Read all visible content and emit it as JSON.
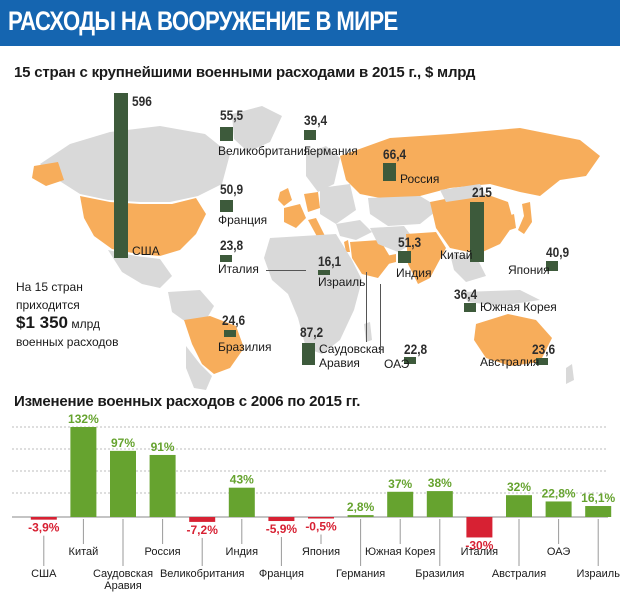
{
  "header": {
    "title": "РАСХОДЫ НА ВООРУЖЕНИЕ В МИРЕ"
  },
  "map_section": {
    "title": "15 стран с крупнейшими военными расходами в 2015 г., $ млрд"
  },
  "bar_section": {
    "title": "Изменение военных расходов с 2006 по 2015 гг."
  },
  "summary": {
    "line1": "На 15 стран",
    "line2": "приходится",
    "total": "$1 350",
    "total_unit": "млрд",
    "line4": "военных расходов"
  },
  "colors": {
    "header": "#1565b0",
    "map_highlight": "#f7ad5b",
    "map_other": "#d9d9d9",
    "spend_bar": "#3d5a3b",
    "increase": "#66a32f",
    "decrease": "#d72133"
  },
  "chart_data": [
    {
      "type": "bar",
      "title": "15 стран с крупнейшими военными расходами в 2015 г., $ млрд",
      "unit": "$ млрд",
      "categories": [
        "США",
        "Китай",
        "Саудовская Аравия",
        "Россия",
        "Великобритания",
        "Индия",
        "Франция",
        "Япония",
        "Германия",
        "Южная Корея",
        "Бразилия",
        "Италия",
        "Австралия",
        "ОАЭ",
        "Израиль"
      ],
      "values": [
        596,
        215,
        87.2,
        66.4,
        55.5,
        51.3,
        50.9,
        40.9,
        39.4,
        36.4,
        24.6,
        23.8,
        23.6,
        22.8,
        16.1
      ],
      "value_labels": [
        "596",
        "215",
        "87,2",
        "66,4",
        "55,5",
        "51,3",
        "50,9",
        "40,9",
        "39,4",
        "36,4",
        "24,6",
        "23,8",
        "23,6",
        "22,8",
        "16,1"
      ]
    },
    {
      "type": "bar",
      "title": "Изменение военных расходов с 2006 по 2015 гг.",
      "unit": "%",
      "categories": [
        "США",
        "Китай",
        "Саудовская Аравия",
        "Россия",
        "Великобритания",
        "Индия",
        "Франция",
        "Япония",
        "Германия",
        "Южная Корея",
        "Бразилия",
        "Италия",
        "Австралия",
        "ОАЭ",
        "Израиль"
      ],
      "values": [
        -3.9,
        132,
        97,
        91,
        -7.2,
        43,
        -5.9,
        -0.5,
        2.8,
        37,
        38,
        -30,
        32,
        22.8,
        16.1
      ],
      "value_labels": [
        "-3,9",
        "132",
        "97",
        "91",
        "-7,2",
        "43",
        "-5,9",
        "-0,5",
        "2,8",
        "37",
        "38",
        "-30",
        "32",
        "22,8",
        "16,1"
      ],
      "value_suffix": "%",
      "category_labels": [
        "США",
        "Китай",
        "Саудовская\nАравия",
        "Россия",
        "Великобритания",
        "Индия",
        "Франция",
        "Япония",
        "Германия",
        "Южная Корея",
        "Бразилия",
        "Италия",
        "Австралия",
        "ОАЭ",
        "Израиль"
      ],
      "ylim": [
        -35,
        132
      ],
      "grid": true,
      "legend": "none"
    }
  ]
}
